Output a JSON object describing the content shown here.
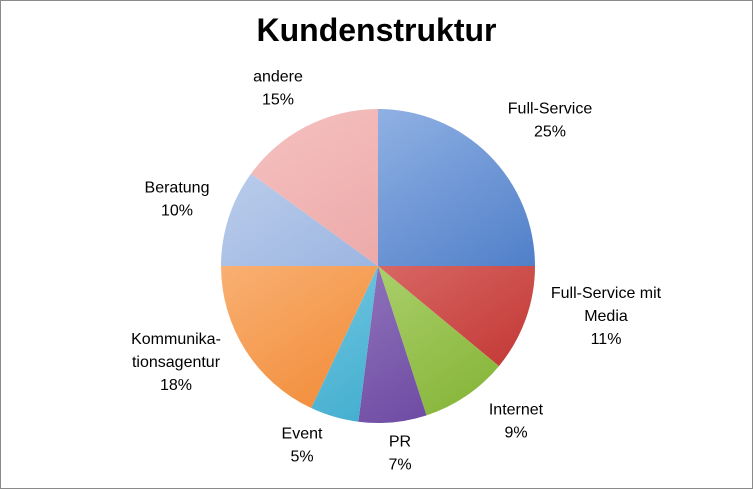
{
  "chart_data": {
    "type": "pie",
    "title": "Kundenstruktur",
    "start_angle_deg": 0,
    "direction": "clockwise",
    "slices": [
      {
        "label": [
          "Full-Service"
        ],
        "value": 25,
        "pct": "25%",
        "color_light": "#a9c4ee",
        "color_dark": "#3b6fc0"
      },
      {
        "label": [
          "Full-Service mit",
          "Media"
        ],
        "value": 11,
        "pct": "11%",
        "color_light": "#f2a3a1",
        "color_dark": "#c43b38"
      },
      {
        "label": [
          "Internet"
        ],
        "value": 9,
        "pct": "9%",
        "color_light": "#d6efa8",
        "color_dark": "#8ab83e"
      },
      {
        "label": [
          "PR"
        ],
        "value": 7,
        "pct": "7%",
        "color_light": "#b9a6d9",
        "color_dark": "#6e4ba3"
      },
      {
        "label": [
          "Event"
        ],
        "value": 5,
        "pct": "5%",
        "color_light": "#a7e3f4",
        "color_dark": "#3aa9cc"
      },
      {
        "label": [
          "Kommunika-",
          "tionsagentur"
        ],
        "value": 18,
        "pct": "18%",
        "color_light": "#fdc99b",
        "color_dark": "#f08228"
      },
      {
        "label": [
          "Beratung"
        ],
        "value": 10,
        "pct": "10%",
        "color_light": "#c4d4ef",
        "color_dark": "#7f9fd6"
      },
      {
        "label": [
          "andere"
        ],
        "value": 15,
        "pct": "15%",
        "color_light": "#f6c3c2",
        "color_dark": "#e59897"
      }
    ]
  }
}
